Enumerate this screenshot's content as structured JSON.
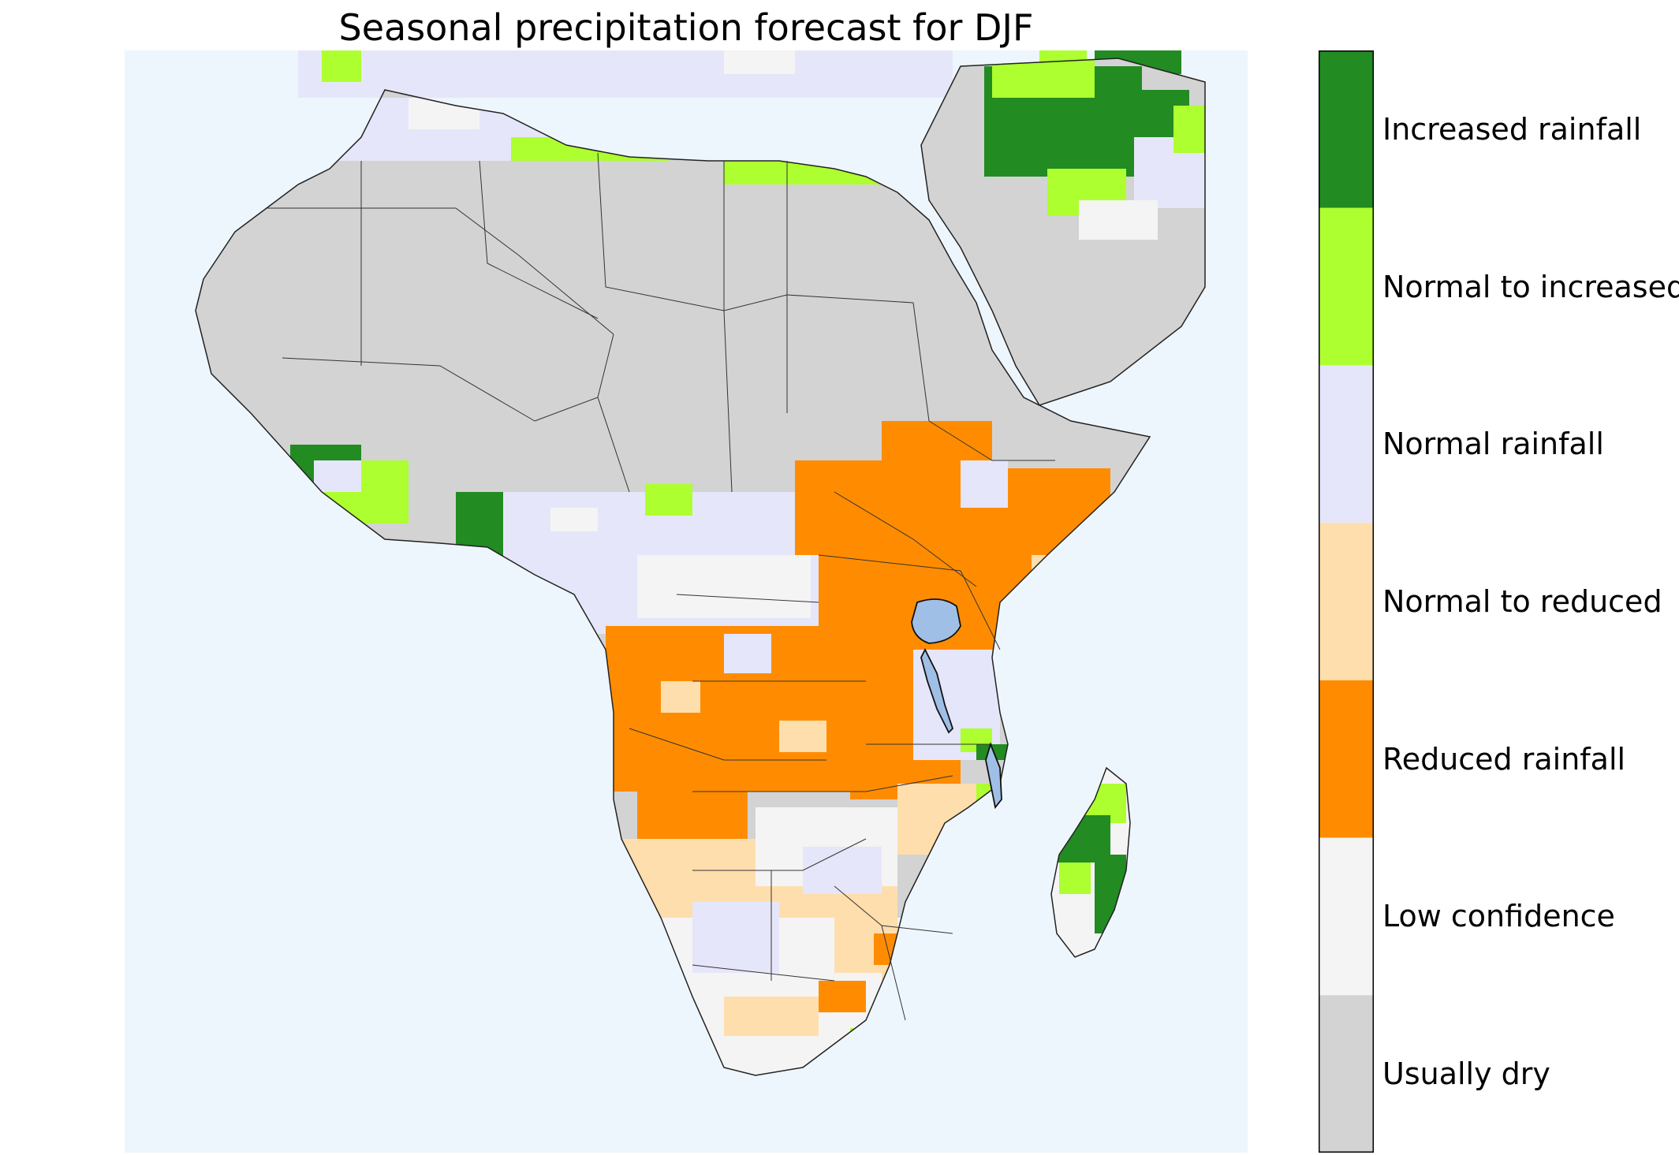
{
  "title": "Seasonal precipitation forecast for DJF",
  "map": {
    "ocean_color": "#eef6fd",
    "lake_color": "#a0bfe6",
    "border_color": "#333333"
  },
  "legend": {
    "categories": [
      {
        "label": "Increased rainfall",
        "color": "#228b22"
      },
      {
        "label": "Normal to increased",
        "color": "#adff2f"
      },
      {
        "label": "Normal rainfall",
        "color": "#e6e6fa"
      },
      {
        "label": "Normal to reduced",
        "color": "#ffdead"
      },
      {
        "label": "Reduced rainfall",
        "color": "#ff8c00"
      },
      {
        "label": "Low confidence",
        "color": "#f4f4f4"
      },
      {
        "label": "Usually dry",
        "color": "#d3d3d3"
      }
    ]
  }
}
